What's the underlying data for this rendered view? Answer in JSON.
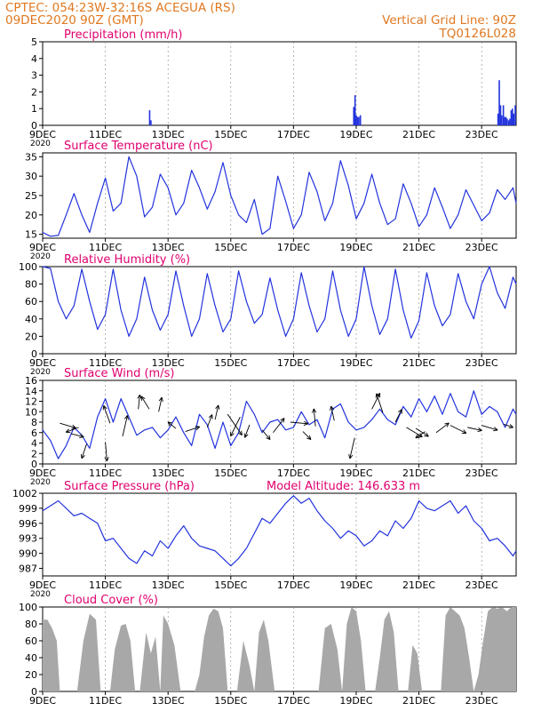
{
  "header": {
    "line1": "CPTEC:  054:23W-32:16S  ACEGUA (RS)",
    "line2": "09DEC2020 90Z (GMT)",
    "grid_note": "Vertical Grid Line: 90Z",
    "code": "TQ0126L028",
    "model_altitude": "Model Altitude: 146.633  m"
  },
  "colors": {
    "header_text": "#e07820",
    "title_text": "#e0006e",
    "series": "#2233dd",
    "cloud_fill": "#a8a8a8",
    "arrow": "#000000"
  },
  "x_axis": {
    "labels": [
      "9DEC",
      "11DEC",
      "13DEC",
      "15DEC",
      "17DEC",
      "19DEC",
      "21DEC",
      "23DEC"
    ],
    "label_days": [
      0,
      2,
      4,
      6,
      8,
      10,
      12,
      14
    ],
    "range_days": [
      0,
      15.1
    ],
    "partial_label": "2020"
  },
  "chart_data": [
    {
      "id": "precip",
      "type": "bar",
      "title": "Precipitation  (mm/h)",
      "ylim": [
        0,
        5
      ],
      "yticks": [
        0,
        1,
        2,
        3,
        4,
        5
      ],
      "x": [
        3.41,
        3.45,
        9.92,
        9.96,
        10.0,
        10.04,
        10.08,
        10.13,
        14.52,
        14.56,
        14.6,
        14.64,
        14.69,
        14.73,
        14.77,
        14.81,
        14.86,
        14.9,
        14.94,
        14.98,
        15.02,
        15.07
      ],
      "values": [
        0.9,
        0.3,
        1.1,
        1.8,
        0.6,
        0.5,
        0.5,
        0.6,
        0.7,
        2.7,
        1.2,
        0.6,
        1.2,
        0.5,
        0.5,
        0.4,
        0.3,
        0.4,
        0.9,
        1.0,
        0.7,
        1.2
      ]
    },
    {
      "id": "temp",
      "type": "line",
      "title": "Surface Temperature (nC)",
      "ylim": [
        14,
        36
      ],
      "yticks": [
        15,
        20,
        25,
        30,
        35
      ],
      "x": [
        0,
        0.25,
        0.5,
        0.75,
        1.0,
        1.25,
        1.5,
        1.75,
        2.0,
        2.25,
        2.5,
        2.75,
        3.0,
        3.25,
        3.5,
        3.75,
        4.0,
        4.25,
        4.5,
        4.75,
        5.0,
        5.25,
        5.5,
        5.75,
        6.0,
        6.25,
        6.5,
        6.75,
        7.0,
        7.25,
        7.5,
        7.75,
        8.0,
        8.25,
        8.5,
        8.75,
        9.0,
        9.25,
        9.5,
        9.75,
        10.0,
        10.25,
        10.5,
        10.75,
        11.0,
        11.25,
        11.5,
        11.75,
        12.0,
        12.25,
        12.5,
        12.75,
        13.0,
        13.25,
        13.5,
        13.75,
        14.0,
        14.25,
        14.5,
        14.75,
        15.0,
        15.1
      ],
      "values": [
        15.5,
        14.5,
        14.7,
        20.0,
        25.5,
        20.0,
        15.5,
        23.0,
        29.5,
        21.0,
        23.0,
        35.0,
        30.0,
        19.5,
        22.0,
        30.5,
        27.0,
        20.0,
        23.0,
        31.5,
        27.0,
        21.5,
        26.0,
        33.5,
        25.0,
        20.0,
        18.0,
        24.0,
        15.0,
        16.5,
        30.0,
        23.5,
        16.5,
        20.0,
        31.0,
        26.0,
        18.5,
        23.0,
        34.0,
        27.5,
        19.0,
        23.0,
        30.5,
        23.0,
        17.5,
        19.0,
        28.0,
        23.0,
        17.0,
        20.0,
        27.0,
        22.0,
        16.5,
        20.0,
        26.5,
        22.5,
        18.5,
        20.5,
        26.5,
        24.0,
        27.0,
        23.0
      ]
    },
    {
      "id": "rh",
      "type": "line",
      "title": "Relative Humidity (%)",
      "ylim": [
        0,
        100
      ],
      "yticks": [
        0,
        20,
        40,
        60,
        80,
        100
      ],
      "x": [
        0,
        0.25,
        0.5,
        0.75,
        1.0,
        1.25,
        1.5,
        1.75,
        2.0,
        2.25,
        2.5,
        2.75,
        3.0,
        3.25,
        3.5,
        3.75,
        4.0,
        4.25,
        4.5,
        4.75,
        5.0,
        5.25,
        5.5,
        5.75,
        6.0,
        6.25,
        6.5,
        6.75,
        7.0,
        7.25,
        7.5,
        7.75,
        8.0,
        8.25,
        8.5,
        8.75,
        9.0,
        9.25,
        9.5,
        9.75,
        10.0,
        10.25,
        10.5,
        10.75,
        11.0,
        11.25,
        11.5,
        11.75,
        12.0,
        12.25,
        12.5,
        12.75,
        13.0,
        13.25,
        13.5,
        13.75,
        14.0,
        14.25,
        14.5,
        14.75,
        15.0,
        15.1
      ],
      "values": [
        100,
        98,
        60,
        40,
        55,
        97,
        60,
        28,
        45,
        97,
        50,
        20,
        40,
        88,
        50,
        27,
        45,
        95,
        55,
        20,
        40,
        92,
        55,
        25,
        40,
        95,
        60,
        35,
        45,
        87,
        50,
        20,
        40,
        93,
        55,
        25,
        40,
        95,
        50,
        20,
        40,
        100,
        55,
        22,
        40,
        97,
        50,
        18,
        38,
        93,
        55,
        32,
        45,
        92,
        60,
        40,
        80,
        100,
        70,
        52,
        88,
        80
      ]
    },
    {
      "id": "wind",
      "type": "line",
      "title": "Surface  Wind  (m/s)",
      "ylim": [
        0,
        16
      ],
      "yticks": [
        0,
        2,
        4,
        6,
        8,
        10,
        12,
        14,
        16
      ],
      "x": [
        0,
        0.25,
        0.5,
        0.75,
        1.0,
        1.25,
        1.5,
        1.75,
        2.0,
        2.25,
        2.5,
        2.75,
        3.0,
        3.25,
        3.5,
        3.75,
        4.0,
        4.25,
        4.5,
        4.75,
        5.0,
        5.25,
        5.5,
        5.75,
        6.0,
        6.25,
        6.5,
        6.75,
        7.0,
        7.25,
        7.5,
        7.75,
        8.0,
        8.25,
        8.5,
        8.75,
        9.0,
        9.25,
        9.5,
        9.75,
        10.0,
        10.25,
        10.5,
        10.75,
        11.0,
        11.25,
        11.5,
        11.75,
        12.0,
        12.25,
        12.5,
        12.75,
        13.0,
        13.25,
        13.5,
        13.75,
        14.0,
        14.25,
        14.5,
        14.75,
        15.0,
        15.1
      ],
      "values": [
        6.5,
        4.5,
        1.0,
        3.5,
        7.0,
        5.5,
        3.0,
        9.0,
        12.5,
        8.0,
        12.5,
        9.0,
        5.5,
        6.5,
        7.0,
        5.0,
        6.5,
        9.0,
        6.0,
        3.5,
        9.5,
        7.5,
        3.0,
        8.0,
        3.5,
        6.0,
        12.0,
        9.5,
        6.0,
        8.0,
        8.5,
        6.5,
        7.0,
        10.0,
        7.5,
        8.5,
        5.0,
        10.5,
        11.5,
        8.0,
        6.5,
        7.0,
        8.5,
        10.5,
        8.5,
        7.5,
        11.0,
        9.0,
        12.5,
        10.0,
        13.0,
        9.5,
        13.5,
        10.0,
        9.0,
        14.0,
        9.5,
        11.0,
        10.0,
        7.0,
        10.5,
        9.5
      ],
      "barbs": [
        {
          "day": 0.55,
          "value": 7.8,
          "u": 1.0,
          "v": 0.3
        },
        {
          "day": 0.9,
          "value": 5.8,
          "u": 0.8,
          "v": 0.2
        },
        {
          "day": 1.15,
          "value": 7.0,
          "u": -0.8,
          "v": 0.3
        },
        {
          "day": 1.4,
          "value": 3.8,
          "u": -0.3,
          "v": 0.9
        },
        {
          "day": 2.0,
          "value": 4.2,
          "u": 0.1,
          "v": 1.2
        },
        {
          "day": 2.15,
          "value": 7.8,
          "u": -0.4,
          "v": -1.1
        },
        {
          "day": 2.55,
          "value": 5.3,
          "u": 0.3,
          "v": -1.3
        },
        {
          "day": 3.05,
          "value": 10.5,
          "u": 0.1,
          "v": -0.9
        },
        {
          "day": 3.4,
          "value": 10.5,
          "u": -0.5,
          "v": -0.8
        },
        {
          "day": 3.7,
          "value": 10.0,
          "u": 0.2,
          "v": -0.9
        },
        {
          "day": 4.25,
          "value": 6.8,
          "u": -0.5,
          "v": -0.4
        },
        {
          "day": 4.55,
          "value": 6.2,
          "u": 0.9,
          "v": -0.3
        },
        {
          "day": 5.25,
          "value": 7.0,
          "u": 0.3,
          "v": -0.8
        },
        {
          "day": 5.5,
          "value": 8.5,
          "u": 0.2,
          "v": -0.9
        },
        {
          "day": 5.9,
          "value": 9.5,
          "u": 0.9,
          "v": 1.3
        },
        {
          "day": 6.3,
          "value": 9.0,
          "u": -0.6,
          "v": 1.2
        },
        {
          "day": 6.6,
          "value": 7.5,
          "u": -0.3,
          "v": 0.8
        },
        {
          "day": 7.0,
          "value": 6.5,
          "u": 0.5,
          "v": 0.6
        },
        {
          "day": 7.35,
          "value": 6.0,
          "u": 0.7,
          "v": -0.9
        },
        {
          "day": 7.9,
          "value": 8.0,
          "u": 1.1,
          "v": 0.1
        },
        {
          "day": 8.3,
          "value": 6.2,
          "u": 0.5,
          "v": 0.5
        },
        {
          "day": 8.7,
          "value": 7.2,
          "u": -0.1,
          "v": -1.1
        },
        {
          "day": 9.3,
          "value": 8.3,
          "u": -0.2,
          "v": -0.9
        },
        {
          "day": 9.95,
          "value": 5.0,
          "u": -0.3,
          "v": 1.3
        },
        {
          "day": 10.5,
          "value": 10.5,
          "u": 0.5,
          "v": -1.0
        },
        {
          "day": 10.85,
          "value": 9.8,
          "u": -0.4,
          "v": -1.2
        },
        {
          "day": 11.25,
          "value": 8.0,
          "u": 0.4,
          "v": -0.8
        },
        {
          "day": 11.6,
          "value": 7.0,
          "u": 1.0,
          "v": 0.6
        },
        {
          "day": 11.9,
          "value": 6.8,
          "u": 0.8,
          "v": 0.5
        },
        {
          "day": 12.2,
          "value": 6.2,
          "u": -0.6,
          "v": 0.4
        },
        {
          "day": 12.55,
          "value": 6.0,
          "u": 0.8,
          "v": -0.6
        },
        {
          "day": 13.0,
          "value": 7.4,
          "u": 1.0,
          "v": 0.5
        },
        {
          "day": 13.55,
          "value": 7.0,
          "u": 0.9,
          "v": 0.2
        },
        {
          "day": 14.0,
          "value": 7.4,
          "u": 1.0,
          "v": 0.3
        },
        {
          "day": 14.7,
          "value": 7.6,
          "u": 0.6,
          "v": 0.2
        }
      ]
    },
    {
      "id": "pressure",
      "type": "line",
      "title": "Surface Pressure (hPa)",
      "ylim": [
        985.5,
        1002
      ],
      "yticks": [
        987,
        990,
        993,
        996,
        999,
        1002
      ],
      "x": [
        0,
        0.25,
        0.5,
        0.75,
        1.0,
        1.25,
        1.5,
        1.75,
        2.0,
        2.25,
        2.5,
        2.75,
        3.0,
        3.25,
        3.5,
        3.75,
        4.0,
        4.25,
        4.5,
        4.75,
        5.0,
        5.25,
        5.5,
        5.75,
        6.0,
        6.25,
        6.5,
        6.75,
        7.0,
        7.25,
        7.5,
        7.75,
        8.0,
        8.25,
        8.5,
        8.75,
        9.0,
        9.25,
        9.5,
        9.75,
        10.0,
        10.25,
        10.5,
        10.75,
        11.0,
        11.25,
        11.5,
        11.75,
        12.0,
        12.25,
        12.5,
        12.75,
        13.0,
        13.25,
        13.5,
        13.75,
        14.0,
        14.25,
        14.5,
        14.75,
        15.0,
        15.1
      ],
      "values": [
        998.5,
        999.5,
        1000.5,
        999.0,
        997.5,
        998.0,
        997.0,
        996.0,
        992.5,
        993.0,
        991.0,
        989.0,
        988.0,
        990.5,
        989.5,
        992.5,
        991.0,
        993.5,
        995.5,
        993.0,
        991.5,
        991.0,
        990.5,
        989.0,
        987.5,
        989.0,
        991.0,
        994.0,
        997.0,
        996.0,
        998.0,
        1000.0,
        1001.5,
        1000.0,
        1001.0,
        998.5,
        996.5,
        995.0,
        993.0,
        994.5,
        993.5,
        991.5,
        992.5,
        994.5,
        993.5,
        996.5,
        995.0,
        997.0,
        1000.5,
        999.0,
        998.5,
        999.5,
        1000.5,
        998.0,
        999.5,
        996.5,
        995.0,
        992.5,
        993.0,
        991.5,
        989.5,
        990.5
      ]
    },
    {
      "id": "cloud",
      "type": "area",
      "title": "Cloud Cover (%)",
      "ylim": [
        0,
        100
      ],
      "yticks": [
        0,
        20,
        40,
        60,
        80,
        100
      ],
      "x": [
        0,
        0.15,
        0.3,
        0.45,
        0.55,
        0.65,
        0.8,
        0.95,
        1.1,
        1.3,
        1.5,
        1.7,
        1.85,
        2.0,
        2.15,
        2.3,
        2.5,
        2.65,
        2.8,
        2.95,
        3.1,
        3.3,
        3.45,
        3.6,
        3.75,
        3.85,
        4.0,
        4.2,
        4.4,
        4.55,
        4.7,
        4.85,
        5.0,
        5.15,
        5.3,
        5.45,
        5.6,
        5.75,
        5.9,
        6.05,
        6.2,
        6.4,
        6.6,
        6.75,
        6.9,
        7.05,
        7.2,
        7.4,
        7.6,
        7.8,
        8.0,
        8.2,
        8.4,
        8.6,
        8.8,
        9.0,
        9.2,
        9.4,
        9.55,
        9.7,
        9.85,
        10.0,
        10.15,
        10.3,
        10.45,
        10.6,
        10.75,
        10.9,
        11.05,
        11.2,
        11.35,
        11.5,
        11.65,
        11.8,
        11.95,
        12.1,
        12.25,
        12.4,
        12.55,
        12.7,
        12.85,
        13.0,
        13.15,
        13.3,
        13.45,
        13.6,
        13.75,
        13.9,
        14.05,
        14.2,
        14.35,
        14.5,
        14.65,
        14.8,
        14.95,
        15.1
      ],
      "values": [
        85,
        85,
        75,
        60,
        0,
        0,
        0,
        0,
        0,
        60,
        92,
        85,
        0,
        0,
        0,
        50,
        78,
        80,
        60,
        0,
        0,
        70,
        45,
        65,
        0,
        90,
        80,
        55,
        0,
        0,
        0,
        0,
        20,
        65,
        90,
        98,
        95,
        75,
        0,
        0,
        0,
        60,
        30,
        0,
        70,
        85,
        60,
        0,
        0,
        0,
        0,
        0,
        0,
        0,
        0,
        75,
        80,
        50,
        0,
        80,
        100,
        95,
        60,
        0,
        0,
        0,
        40,
        85,
        95,
        70,
        0,
        0,
        0,
        55,
        45,
        0,
        0,
        0,
        0,
        0,
        90,
        100,
        95,
        90,
        75,
        40,
        0,
        20,
        60,
        95,
        100,
        98,
        100,
        95,
        100,
        100
      ]
    }
  ]
}
